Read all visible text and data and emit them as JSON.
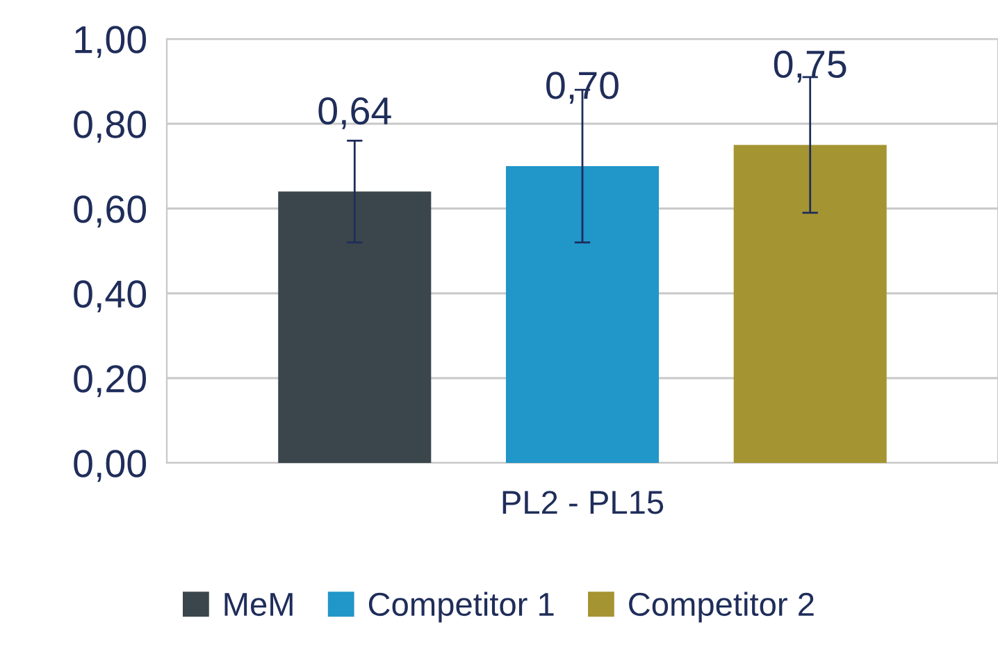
{
  "chart_data": {
    "type": "bar",
    "categories": [
      "PL2 - PL15"
    ],
    "series": [
      {
        "name": "MeM",
        "color": "#3a464b",
        "values": [
          0.64
        ],
        "errors": [
          0.12
        ],
        "value_labels": [
          "0,64"
        ]
      },
      {
        "name": "Competitor 1",
        "color": "#2196c8",
        "values": [
          0.7
        ],
        "errors": [
          0.18
        ],
        "value_labels": [
          "0,70"
        ]
      },
      {
        "name": "Competitor 2",
        "color": "#a59432",
        "values": [
          0.75
        ],
        "errors": [
          0.16
        ],
        "value_labels": [
          "0,75"
        ]
      }
    ],
    "ylim": [
      0,
      1
    ],
    "yticks": [
      {
        "value": 0,
        "label": "0,00"
      },
      {
        "value": 0.2,
        "label": "0,20"
      },
      {
        "value": 0.4,
        "label": "0,40"
      },
      {
        "value": 0.6,
        "label": "0,60"
      },
      {
        "value": 0.8,
        "label": "0,80"
      },
      {
        "value": 1,
        "label": "1,00"
      }
    ],
    "grid": "y",
    "legend": "bottom"
  }
}
